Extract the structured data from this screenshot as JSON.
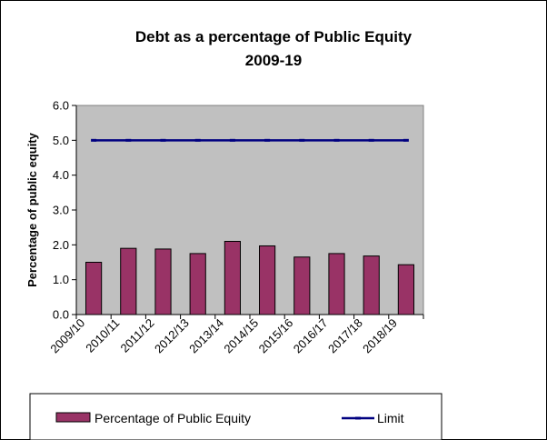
{
  "chart_data": {
    "type": "bar",
    "title": "Debt as a percentage of Public Equity",
    "subtitle": "2009-19",
    "xlabel": "",
    "ylabel": "Percentage of public equity",
    "ylim": [
      0,
      6.0
    ],
    "yticks": [
      "0.0",
      "1.0",
      "2.0",
      "3.0",
      "4.0",
      "5.0",
      "6.0"
    ],
    "categories": [
      "2009/10",
      "2010/11",
      "2011/12",
      "2012/13",
      "2013/14",
      "2014/15",
      "2015/16",
      "2016/17",
      "2017/18",
      "2018/19"
    ],
    "series": [
      {
        "name": "Percentage of Public Equity",
        "type": "bar",
        "color": "#993366",
        "values": [
          1.5,
          1.9,
          1.88,
          1.75,
          2.1,
          1.97,
          1.65,
          1.75,
          1.68,
          1.43
        ]
      },
      {
        "name": "Limit",
        "type": "line",
        "color": "#000080",
        "values": [
          5.0,
          5.0,
          5.0,
          5.0,
          5.0,
          5.0,
          5.0,
          5.0,
          5.0,
          5.0
        ]
      }
    ],
    "plot_background": "#c0c0c0",
    "grid": false,
    "legend_position": "bottom"
  }
}
